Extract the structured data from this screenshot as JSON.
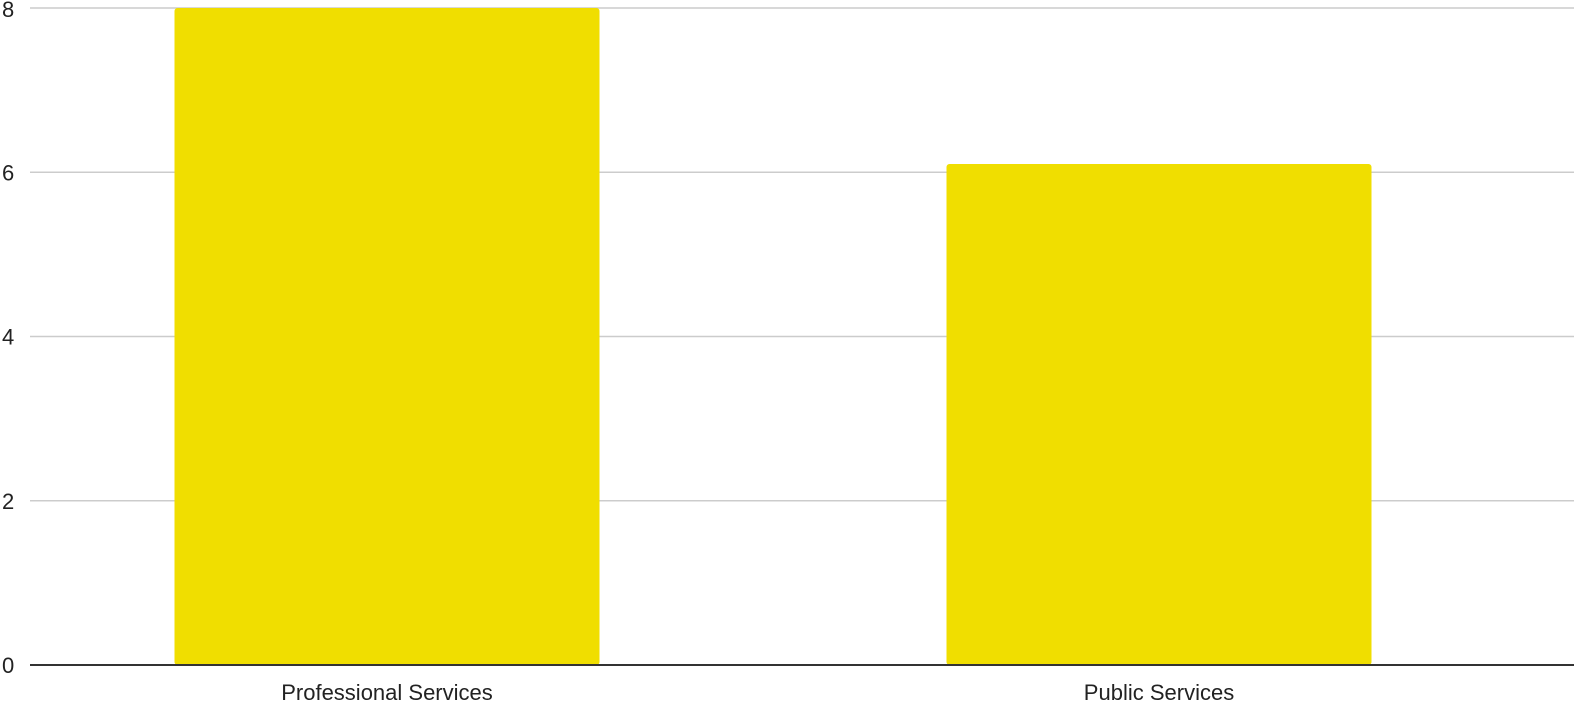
{
  "chart_data": {
    "type": "bar",
    "title": "",
    "xlabel": "",
    "ylabel": "",
    "categories": [
      "Professional Services",
      "Public Services"
    ],
    "values": [
      8,
      6.1
    ],
    "ylim": [
      0,
      8
    ],
    "yticks": [
      "0",
      "2",
      "4",
      "6",
      "8"
    ],
    "grid": true,
    "legend": "none",
    "colors": {
      "bar": "#f0de00",
      "grid": "#cccccc",
      "baseline": "#333333",
      "text": "#222222",
      "background": "#ffffff"
    }
  }
}
